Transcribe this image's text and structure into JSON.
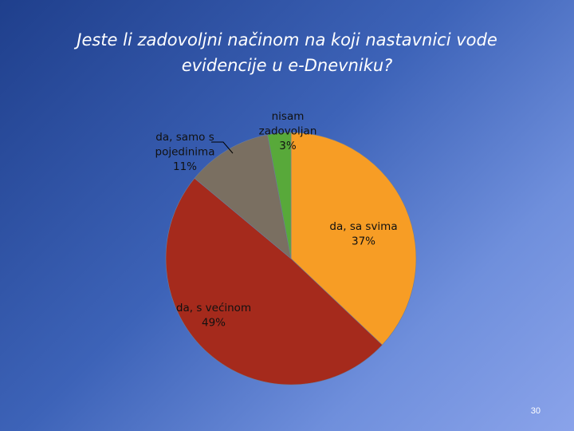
{
  "slide": {
    "title_line1": "Jeste li zadovoljni načinom na koji nastavnici vode",
    "title_line2": "evidencije u e-Dnevniku?",
    "page_number": "30"
  },
  "chart_data": {
    "type": "pie",
    "title": "Jeste li zadovoljni načinom na koji nastavnici vode evidencije u e-Dnevniku?",
    "slices": [
      {
        "name": "da, sa svima",
        "value": 37,
        "label": "37%",
        "color": "#f79d25"
      },
      {
        "name": "da, s većinom",
        "value": 49,
        "label": "49%",
        "color": "#a52a1c"
      },
      {
        "name": "da, samo s pojedinima",
        "value": 11,
        "label": "11%",
        "color": "#7a6f61"
      },
      {
        "name": "nisam zadovoljan",
        "value": 3,
        "label": "3%",
        "color": "#58a93a"
      }
    ],
    "label_lines": [
      [
        "da, sa svima",
        "37%"
      ],
      [
        "da, s većinom",
        "49%"
      ],
      [
        "da, samo s",
        "pojedinima",
        "11%"
      ],
      [
        "nisam",
        "zadovoljan",
        "3%"
      ]
    ]
  }
}
